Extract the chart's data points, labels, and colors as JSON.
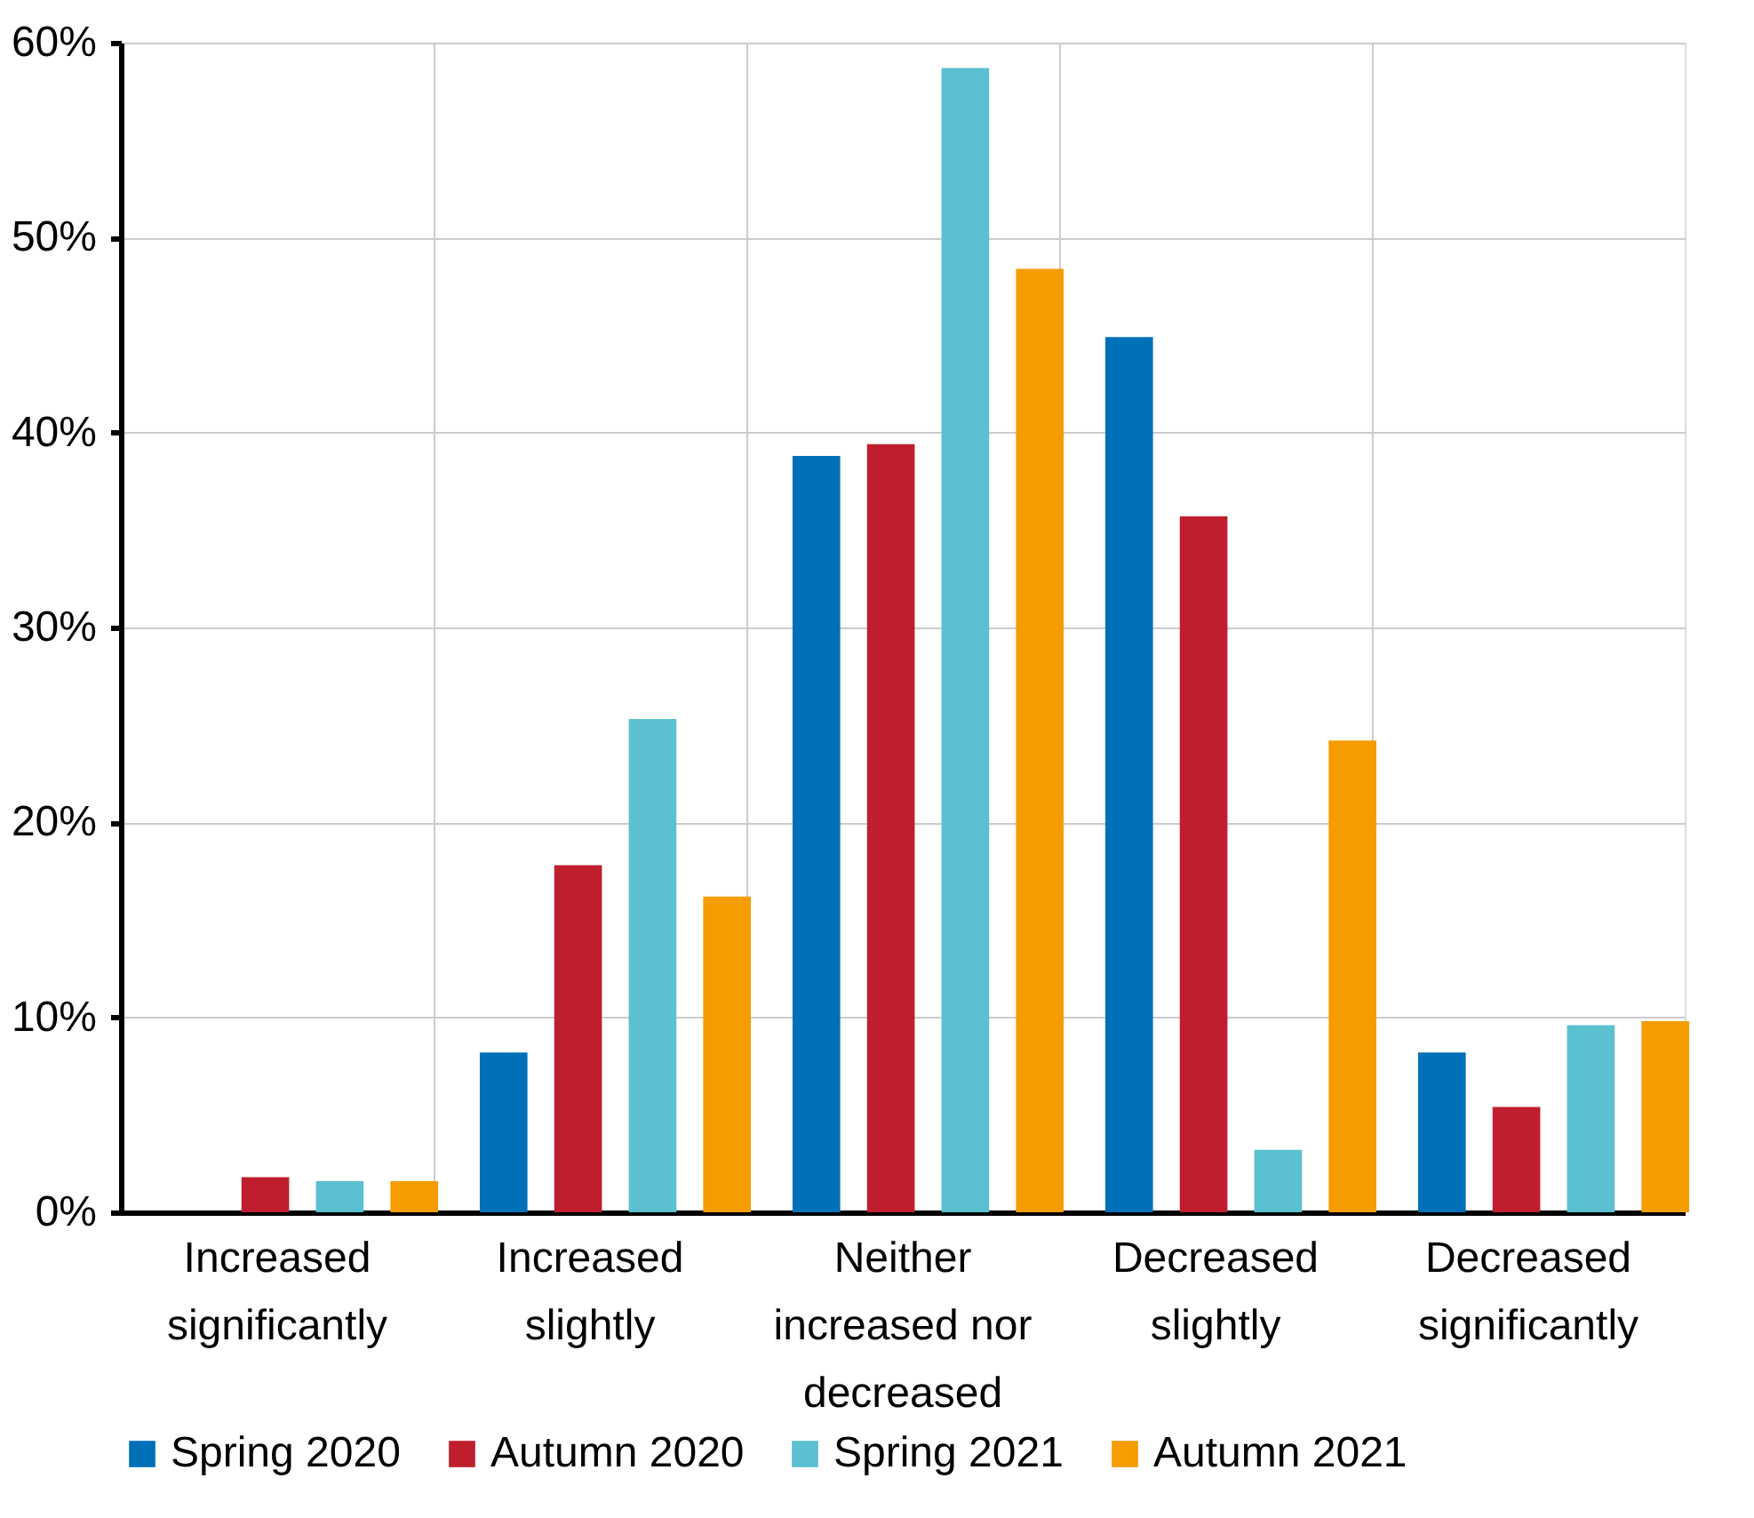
{
  "chart_data": {
    "type": "bar",
    "categories": [
      "Increased significantly",
      "Increased slightly",
      "Neither increased nor decreased",
      "Decreased slightly",
      "Decreased significantly"
    ],
    "series": [
      {
        "name": "Spring 2020",
        "color": "#0070b8",
        "values": [
          0,
          8.2,
          38.8,
          44.9,
          8.2
        ]
      },
      {
        "name": "Autumn 2020",
        "color": "#be1e2d",
        "values": [
          1.8,
          17.8,
          39.4,
          35.7,
          5.4
        ]
      },
      {
        "name": "Spring 2021",
        "color": "#5bc0d0",
        "values": [
          1.6,
          25.3,
          58.7,
          3.2,
          9.6
        ]
      },
      {
        "name": "Autumn 2021",
        "color": "#f59c00",
        "values": [
          1.6,
          16.2,
          48.4,
          24.2,
          9.8
        ]
      }
    ],
    "ylim": [
      0,
      60
    ],
    "yticks": [
      {
        "value": 0,
        "label": "0%"
      },
      {
        "value": 10,
        "label": "10%"
      },
      {
        "value": 20,
        "label": "20%"
      },
      {
        "value": 30,
        "label": "30%"
      },
      {
        "value": 40,
        "label": "40%"
      },
      {
        "value": 50,
        "label": "50%"
      },
      {
        "value": 60,
        "label": "60%"
      }
    ],
    "grid": true,
    "legend": "bottom"
  }
}
